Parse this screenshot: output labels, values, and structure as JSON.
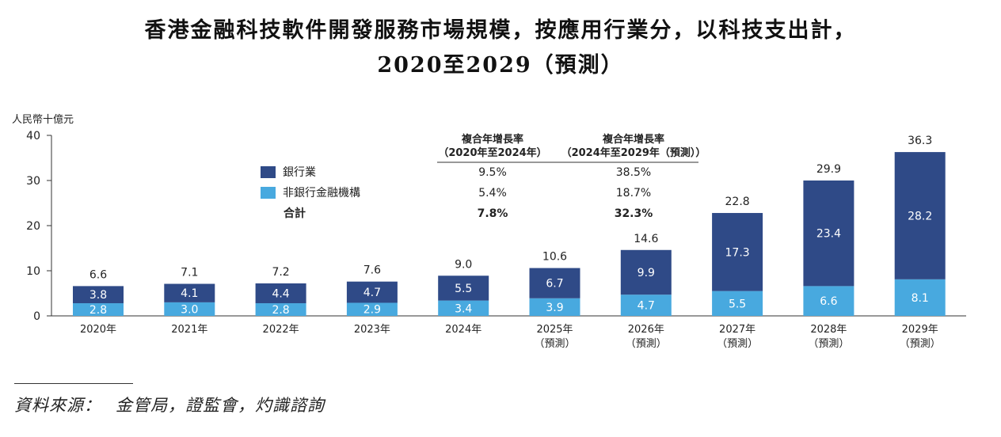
{
  "title_line1": "香港金融科技軟件開發服務市場規模，按應用行業分，以科技支出計，",
  "title_line2": "2020至2029（預測）",
  "source": {
    "label": "資料來源：",
    "text": "金管局，證監會，灼識諮詢"
  },
  "colors": {
    "banking": "#2f4a87",
    "non_banking": "#48a9df",
    "axis": "#333333"
  },
  "cagr_table": {
    "columns": [
      {
        "head1": "複合年增長率",
        "head2": "（2020年至2024年）"
      },
      {
        "head1": "複合年增長率",
        "head2": "（2024年至2029年（預測））"
      }
    ],
    "rows": [
      {
        "label": "銀行業",
        "values": [
          "9.5%",
          "38.5%"
        ],
        "swatch": "banking"
      },
      {
        "label": "非銀行金融機構",
        "values": [
          "5.4%",
          "18.7%"
        ],
        "swatch": "non_banking"
      },
      {
        "label": "合計",
        "values": [
          "7.8%",
          "32.3%"
        ],
        "swatch": null
      }
    ]
  },
  "chart_data": {
    "type": "bar",
    "stacked": true,
    "ylabel": "人民幣十億元",
    "ylim": [
      0,
      40
    ],
    "yticks": [
      0,
      10,
      20,
      30,
      40
    ],
    "categories": [
      "2020年",
      "2021年",
      "2022年",
      "2023年",
      "2024年",
      "2025年",
      "2026年",
      "2027年",
      "2028年",
      "2029年"
    ],
    "category_sublabels": [
      "",
      "",
      "",
      "",
      "",
      "（預測）",
      "（預測）",
      "（預測）",
      "（預測）",
      "（預測）"
    ],
    "series": [
      {
        "name": "非銀行金融機構",
        "color": "#48a9df",
        "values": [
          2.8,
          3.0,
          2.8,
          2.9,
          3.4,
          3.9,
          4.7,
          5.5,
          6.6,
          8.1
        ]
      },
      {
        "name": "銀行業",
        "color": "#2f4a87",
        "values": [
          3.8,
          4.1,
          4.4,
          4.7,
          5.5,
          6.7,
          9.9,
          17.3,
          23.4,
          28.2
        ]
      }
    ],
    "totals": [
      6.6,
      7.1,
      7.2,
      7.6,
      9.0,
      10.6,
      14.6,
      22.8,
      29.9,
      36.3
    ],
    "legend": "top-left"
  }
}
